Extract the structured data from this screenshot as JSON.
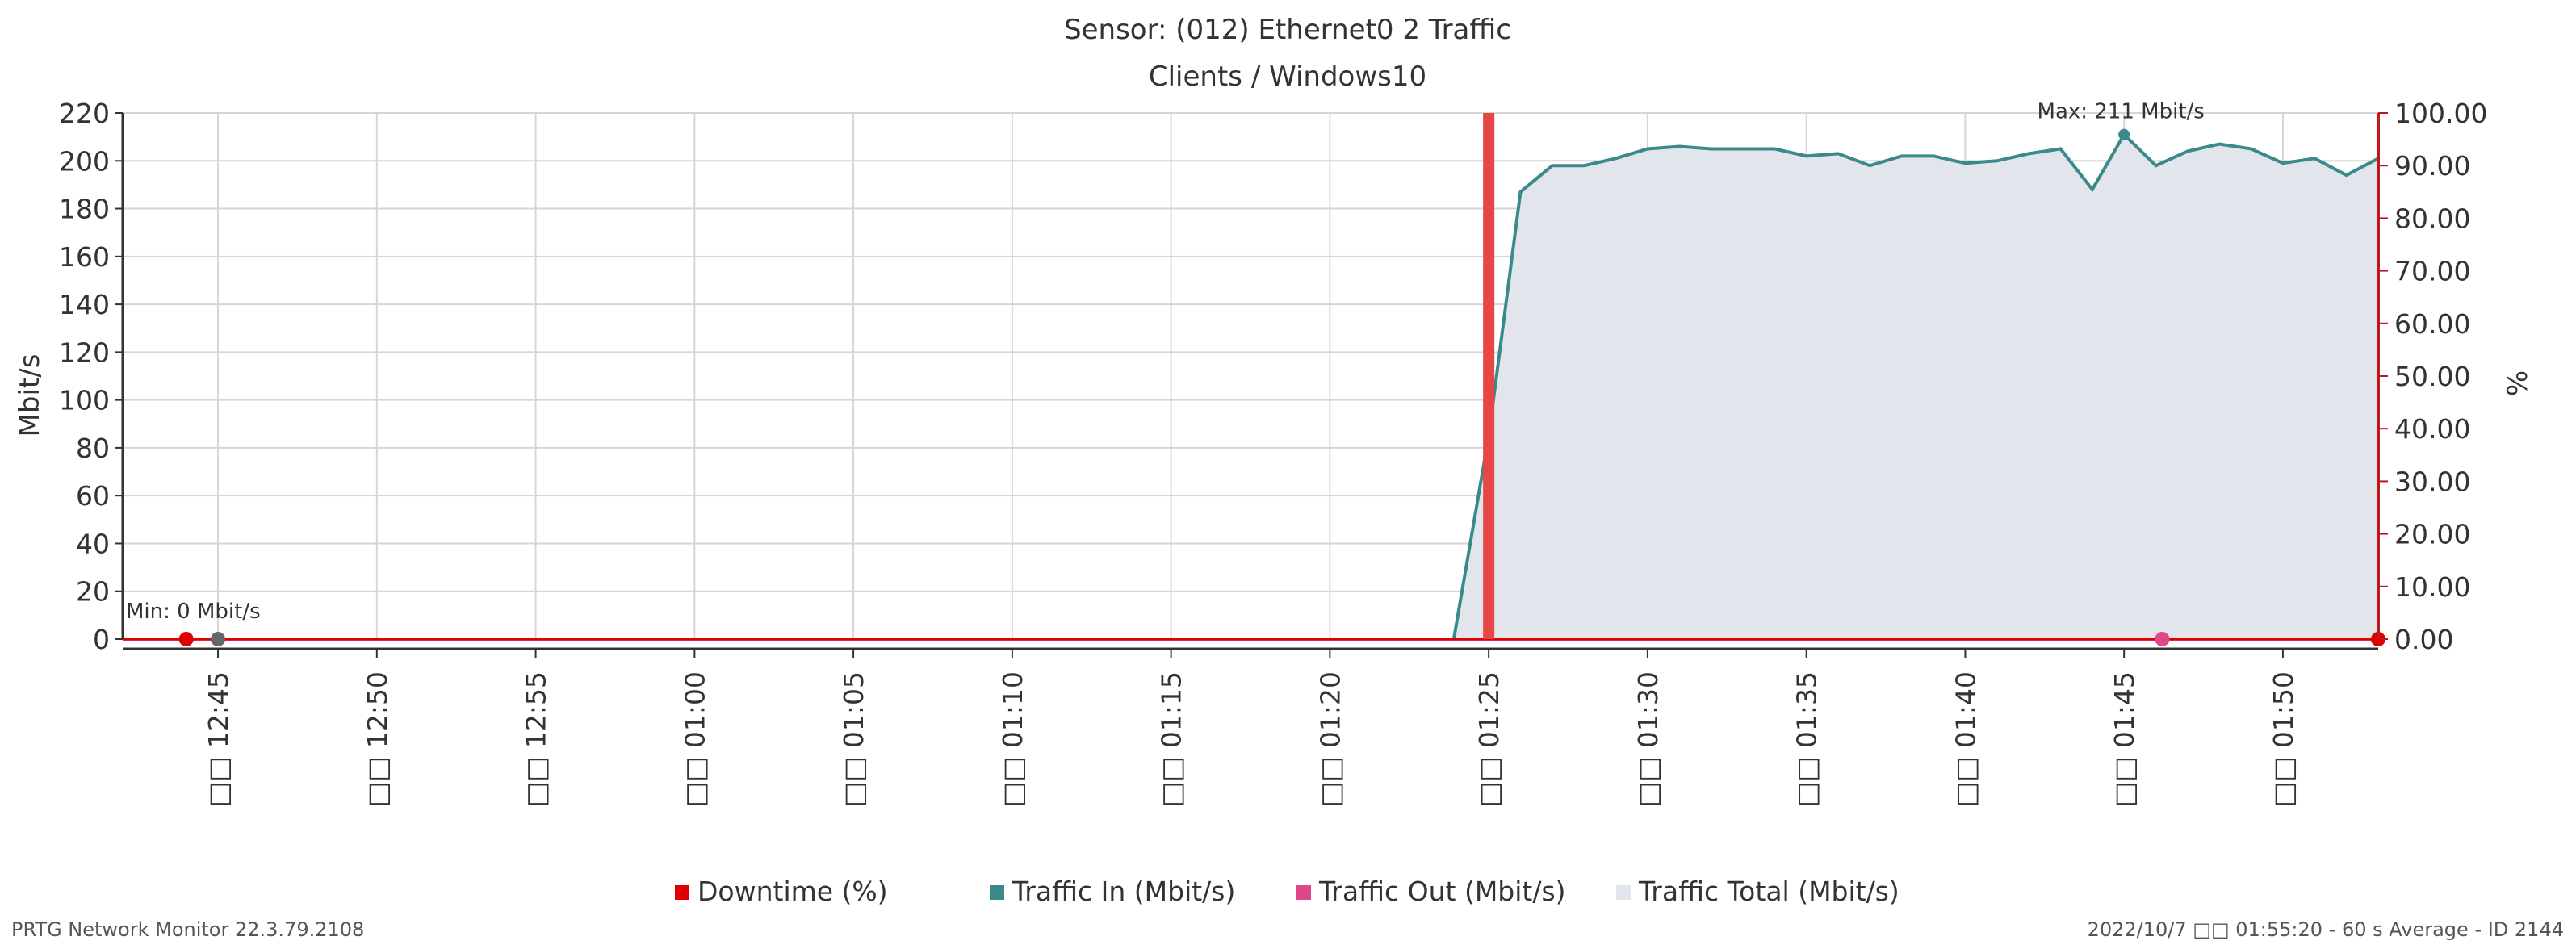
{
  "chart_data": {
    "type": "area",
    "title": "Sensor: (012) Ethernet0 2 Traffic",
    "subtitle": "Clients / Windows10",
    "ylabel": "Mbit/s",
    "y2label": "%",
    "ylim": [
      0,
      220
    ],
    "y_ticks": [
      0,
      20,
      40,
      60,
      80,
      100,
      120,
      140,
      160,
      180,
      200,
      220
    ],
    "y2lim": [
      0,
      100
    ],
    "y2_ticks": [
      "0.00",
      "10.00",
      "20.00",
      "30.00",
      "40.00",
      "50.00",
      "60.00",
      "70.00",
      "80.00",
      "90.00",
      "100.00"
    ],
    "x_ticks": [
      {
        "t": 45,
        "label": "□□ 12:45"
      },
      {
        "t": 50,
        "label": "□□ 12:50"
      },
      {
        "t": 55,
        "label": "□□ 12:55"
      },
      {
        "t": 60,
        "label": "□□ 01:00"
      },
      {
        "t": 65,
        "label": "□□ 01:05"
      },
      {
        "t": 70,
        "label": "□□ 01:10"
      },
      {
        "t": 75,
        "label": "□□ 01:15"
      },
      {
        "t": 80,
        "label": "□□ 01:20"
      },
      {
        "t": 85,
        "label": "□□ 01:25"
      },
      {
        "t": 90,
        "label": "□□ 01:30"
      },
      {
        "t": 95,
        "label": "□□ 01:35"
      },
      {
        "t": 100,
        "label": "□□ 01:40"
      },
      {
        "t": 105,
        "label": "□□ 01:45"
      },
      {
        "t": 110,
        "label": "□□ 01:50"
      }
    ],
    "xlim": [
      42,
      113
    ],
    "grid": true,
    "series": [
      {
        "name": "Traffic Total (Mbit/s)",
        "color": "#e2e5ec",
        "kind": "area",
        "x": [
          42,
          83.9,
          85,
          86,
          87,
          88,
          89,
          90,
          91,
          92,
          93,
          94,
          95,
          96,
          97,
          98,
          99,
          100,
          101,
          102,
          103,
          104,
          105,
          106,
          107,
          108,
          109,
          110,
          111,
          112,
          113
        ],
        "y": [
          0,
          0,
          85,
          187,
          198,
          198,
          201,
          205,
          206,
          205,
          205,
          205,
          202,
          203,
          198,
          202,
          202,
          199,
          200,
          203,
          205,
          188,
          211,
          198,
          204,
          207,
          205,
          199,
          201,
          194,
          201
        ]
      },
      {
        "name": "Traffic In (Mbit/s)",
        "color": "#3a8a8c",
        "kind": "line",
        "x": [
          42,
          83.9,
          85,
          86,
          87,
          88,
          89,
          90,
          91,
          92,
          93,
          94,
          95,
          96,
          97,
          98,
          99,
          100,
          101,
          102,
          103,
          104,
          105,
          106,
          107,
          108,
          109,
          110,
          111,
          112,
          113
        ],
        "y": [
          0,
          0,
          85,
          187,
          198,
          198,
          201,
          205,
          206,
          205,
          205,
          205,
          202,
          203,
          198,
          202,
          202,
          199,
          200,
          203,
          205,
          188,
          211,
          198,
          204,
          207,
          205,
          199,
          201,
          194,
          201
        ]
      },
      {
        "name": "Traffic Out (Mbit/s)",
        "color": "#e0468a",
        "kind": "line",
        "x": [
          42,
          113
        ],
        "y": [
          0,
          0
        ]
      },
      {
        "name": "Downtime (%)",
        "color": "#e00000",
        "kind": "line",
        "axis": "right",
        "x": [
          42,
          113
        ],
        "y": [
          0,
          0
        ]
      }
    ],
    "downtime_bar": {
      "t": 85,
      "value_pct": 100,
      "color": "#e84545"
    },
    "markers": [
      {
        "t": 44,
        "y": 0,
        "color": "#e00000"
      },
      {
        "t": 45,
        "y": 0,
        "color": "#666666"
      },
      {
        "t": 106.2,
        "y": 0,
        "color": "#e0468a"
      },
      {
        "t": 113,
        "y": 0,
        "color": "#e00000"
      }
    ],
    "annotations": [
      {
        "text": "Min: 0 Mbit/s",
        "t": 42,
        "y": 0
      },
      {
        "text": "Max: 211 Mbit/s",
        "t": 105,
        "y": 211
      }
    ],
    "legend": [
      {
        "label": "Downtime (%)",
        "color": "#e00000"
      },
      {
        "label": "Traffic In (Mbit/s)",
        "color": "#3a8a8c"
      },
      {
        "label": "Traffic Out (Mbit/s)",
        "color": "#e0468a"
      },
      {
        "label": "Traffic Total (Mbit/s)",
        "color": "#e2e5ec"
      }
    ],
    "legend_position": "bottom-center"
  },
  "footer": {
    "left": "PRTG Network Monitor 22.3.79.2108",
    "right": "2022/10/7 □□ 01:55:20 - 60 s Average - ID 2144"
  }
}
